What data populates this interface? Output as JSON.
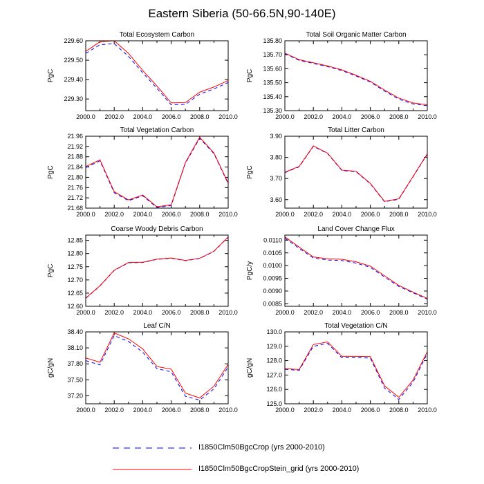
{
  "title": "Eastern Siberia (50-66.5N,90-140E)",
  "colors": {
    "blue": "#0000ff",
    "red": "#ff0000"
  },
  "legend": [
    {
      "label": "I1850Clm50BgcCrop (yrs 2000-2010)",
      "color": "#0000ff",
      "style": "dashed"
    },
    {
      "label": "I1850Clm50BgcCropStein_grid (yrs 2000-2010)",
      "color": "#ff0000",
      "style": "solid"
    }
  ],
  "chart_data": [
    {
      "type": "line",
      "title": "Total Ecosystem Carbon",
      "ylabel": "PgC",
      "x": [
        2000,
        2001,
        2002,
        2003,
        2004,
        2005,
        2006,
        2007,
        2008,
        2009,
        2010
      ],
      "xlim": [
        2000,
        2010
      ],
      "ylim": [
        229.24,
        229.6
      ],
      "xticks": [
        "2000.0",
        "2002.0",
        "2004.0",
        "2006.0",
        "2008.0",
        "2010.0"
      ],
      "yticks": [
        229.3,
        229.4,
        229.5,
        229.6
      ],
      "yticklabels": [
        "229.30",
        "229.40",
        "229.50",
        "229.60"
      ],
      "series": [
        {
          "name": "I1850Clm50BgcCrop (yrs 2000-2010)",
          "values": [
            229.535,
            229.58,
            229.585,
            229.52,
            229.435,
            229.355,
            229.27,
            229.272,
            229.325,
            229.352,
            229.385
          ]
        },
        {
          "name": "I1850Clm50BgcCropStein_grid (yrs 2000-2010)",
          "values": [
            229.545,
            229.595,
            229.6,
            229.535,
            229.447,
            229.367,
            229.28,
            229.282,
            229.335,
            229.362,
            229.395
          ]
        }
      ]
    },
    {
      "type": "line",
      "title": "Total Soil Organic Matter Carbon",
      "ylabel": "PgC",
      "x": [
        2000,
        2001,
        2002,
        2003,
        2004,
        2005,
        2006,
        2007,
        2008,
        2009,
        2010
      ],
      "xlim": [
        2000,
        2010
      ],
      "ylim": [
        135.3,
        135.8
      ],
      "xticks": [
        "2000.0",
        "2002.0",
        "2004.0",
        "2006.0",
        "2008.0",
        "2010.0"
      ],
      "yticks": [
        135.3,
        135.4,
        135.5,
        135.6,
        135.7,
        135.8
      ],
      "yticklabels": [
        "135.30",
        "135.40",
        "135.50",
        "135.60",
        "135.70",
        "135.80"
      ],
      "series": [
        {
          "name": "I1850Clm50BgcCrop (yrs 2000-2010)",
          "values": [
            135.708,
            135.66,
            135.638,
            135.615,
            135.587,
            135.548,
            135.505,
            135.44,
            135.382,
            135.348,
            135.335
          ]
        },
        {
          "name": "I1850Clm50BgcCropStein_grid (yrs 2000-2010)",
          "values": [
            135.712,
            135.665,
            135.643,
            135.62,
            135.592,
            135.553,
            135.51,
            135.447,
            135.39,
            135.355,
            135.342
          ]
        }
      ]
    },
    {
      "type": "line",
      "title": "Total Vegetation Carbon",
      "ylabel": "PgC",
      "x": [
        2000,
        2001,
        2002,
        2003,
        2004,
        2005,
        2006,
        2007,
        2008,
        2009,
        2010
      ],
      "xlim": [
        2000,
        2010
      ],
      "ylim": [
        21.68,
        21.96
      ],
      "xticks": [
        "2000.0",
        "2002.0",
        "2004.0",
        "2006.0",
        "2008.0",
        "2010.0"
      ],
      "yticks": [
        21.68,
        21.72,
        21.76,
        21.8,
        21.84,
        21.88,
        21.92,
        21.96
      ],
      "yticklabels": [
        "21.68",
        "21.72",
        "21.76",
        "21.80",
        "21.84",
        "21.88",
        "21.92",
        "21.96"
      ],
      "series": [
        {
          "name": "I1850Clm50BgcCrop (yrs 2000-2010)",
          "values": [
            21.838,
            21.864,
            21.74,
            21.709,
            21.728,
            21.682,
            21.69,
            21.855,
            21.952,
            21.892,
            21.775
          ]
        },
        {
          "name": "I1850Clm50BgcCropStein_grid (yrs 2000-2010)",
          "values": [
            21.842,
            21.868,
            21.744,
            21.712,
            21.731,
            21.685,
            21.693,
            21.858,
            21.956,
            21.895,
            21.778
          ]
        }
      ]
    },
    {
      "type": "line",
      "title": "Total Litter Carbon",
      "ylabel": "PgC",
      "x": [
        2000,
        2001,
        2002,
        2003,
        2004,
        2005,
        2006,
        2007,
        2008,
        2009,
        2010
      ],
      "xlim": [
        2000,
        2010
      ],
      "ylim": [
        3.56,
        3.9
      ],
      "xticks": [
        "2000.0",
        "2002.0",
        "2004.0",
        "2006.0",
        "2008.0",
        "2010.0"
      ],
      "yticks": [
        3.6,
        3.7,
        3.8,
        3.9
      ],
      "yticklabels": [
        "3.60",
        "3.70",
        "3.80",
        "3.90"
      ],
      "series": [
        {
          "name": "I1850Clm50BgcCrop (yrs 2000-2010)",
          "values": [
            3.728,
            3.755,
            3.852,
            3.818,
            3.738,
            3.732,
            3.675,
            3.59,
            3.602,
            3.708,
            3.815
          ]
        },
        {
          "name": "I1850Clm50BgcCropStein_grid (yrs 2000-2010)",
          "values": [
            3.73,
            3.757,
            3.854,
            3.82,
            3.74,
            3.734,
            3.677,
            3.592,
            3.604,
            3.71,
            3.817
          ]
        }
      ]
    },
    {
      "type": "line",
      "title": "Coarse Woody Debris Carbon",
      "ylabel": "PgC",
      "x": [
        2000,
        2001,
        2002,
        2003,
        2004,
        2005,
        2006,
        2007,
        2008,
        2009,
        2010
      ],
      "xlim": [
        2000,
        2010
      ],
      "ylim": [
        12.6,
        12.87
      ],
      "xticks": [
        "2000.0",
        "2002.0",
        "2004.0",
        "2006.0",
        "2008.0",
        "2010.0"
      ],
      "yticks": [
        12.6,
        12.65,
        12.7,
        12.75,
        12.8,
        12.85
      ],
      "yticklabels": [
        "12.60",
        "12.65",
        "12.70",
        "12.75",
        "12.80",
        "12.85"
      ],
      "series": [
        {
          "name": "I1850Clm50BgcCrop (yrs 2000-2010)",
          "values": [
            12.63,
            12.677,
            12.736,
            12.765,
            12.766,
            12.778,
            12.782,
            12.773,
            12.781,
            12.808,
            12.862
          ]
        },
        {
          "name": "I1850Clm50BgcCropStein_grid (yrs 2000-2010)",
          "values": [
            12.631,
            12.678,
            12.737,
            12.766,
            12.767,
            12.779,
            12.783,
            12.774,
            12.782,
            12.809,
            12.863
          ]
        }
      ]
    },
    {
      "type": "line",
      "title": "Land Cover Change Flux",
      "ylabel": "PgC/y",
      "x": [
        2000,
        2001,
        2002,
        2003,
        2004,
        2005,
        2006,
        2007,
        2008,
        2009,
        2010
      ],
      "xlim": [
        2000,
        2010
      ],
      "ylim": [
        0.0084,
        0.0112
      ],
      "xticks": [
        "2000.0",
        "2002.0",
        "2004.0",
        "2006.0",
        "2008.0",
        "2010.0"
      ],
      "yticks": [
        0.0085,
        0.009,
        0.0095,
        0.01,
        0.0105,
        0.011
      ],
      "yticklabels": [
        "0.0085",
        "0.0090",
        "0.0095",
        "0.0100",
        "0.0105",
        "0.0110"
      ],
      "series": [
        {
          "name": "I1850Clm50BgcCrop (yrs 2000-2010)",
          "values": [
            0.01108,
            0.01068,
            0.0103,
            0.01022,
            0.0102,
            0.0101,
            0.00993,
            0.00955,
            0.00918,
            0.00893,
            0.00868
          ]
        },
        {
          "name": "I1850Clm50BgcCropStein_grid (yrs 2000-2010)",
          "values": [
            0.01113,
            0.01073,
            0.01034,
            0.01027,
            0.01025,
            0.01015,
            0.00998,
            0.0096,
            0.00922,
            0.00896,
            0.00871
          ]
        }
      ]
    },
    {
      "type": "line",
      "title": "Leaf C/N",
      "ylabel": "gC/gN",
      "x": [
        2000,
        2001,
        2002,
        2003,
        2004,
        2005,
        2006,
        2007,
        2008,
        2009,
        2010
      ],
      "xlim": [
        2000,
        2010
      ],
      "ylim": [
        37.05,
        38.4
      ],
      "xticks": [
        "2000.0",
        "2002.0",
        "2004.0",
        "2006.0",
        "2008.0",
        "2010.0"
      ],
      "yticks": [
        37.2,
        37.5,
        37.8,
        38.1,
        38.4
      ],
      "yticklabels": [
        "37.20",
        "37.50",
        "37.80",
        "38.10",
        "38.40"
      ],
      "series": [
        {
          "name": "I1850Clm50BgcCrop (yrs 2000-2010)",
          "values": [
            37.86,
            37.78,
            38.33,
            38.22,
            38.02,
            37.71,
            37.65,
            37.19,
            37.12,
            37.33,
            37.74
          ]
        },
        {
          "name": "I1850Clm50BgcCropStein_grid (yrs 2000-2010)",
          "values": [
            37.91,
            37.83,
            38.38,
            38.27,
            38.08,
            37.75,
            37.7,
            37.25,
            37.16,
            37.38,
            37.79
          ]
        }
      ]
    },
    {
      "type": "line",
      "title": "Total Vegetation C/N",
      "ylabel": "gC/gN",
      "x": [
        2000,
        2001,
        2002,
        2003,
        2004,
        2005,
        2006,
        2007,
        2008,
        2009,
        2010
      ],
      "xlim": [
        2000,
        2010
      ],
      "ylim": [
        125.0,
        130.0
      ],
      "xticks": [
        "2000.0",
        "2002.0",
        "2004.0",
        "2006.0",
        "2008.0",
        "2010.0"
      ],
      "yticks": [
        125.0,
        126.0,
        127.0,
        128.0,
        129.0,
        130.0
      ],
      "yticklabels": [
        "125.0",
        "126.0",
        "127.0",
        "128.0",
        "129.0",
        "130.0"
      ],
      "series": [
        {
          "name": "I1850Clm50BgcCrop (yrs 2000-2010)",
          "values": [
            127.4,
            127.32,
            129.0,
            129.2,
            128.2,
            128.2,
            128.18,
            126.1,
            125.3,
            126.5,
            128.5
          ]
        },
        {
          "name": "I1850Clm50BgcCropStein_grid (yrs 2000-2010)",
          "values": [
            127.45,
            127.38,
            129.12,
            129.3,
            128.3,
            128.3,
            128.28,
            126.25,
            125.45,
            126.65,
            128.62
          ]
        }
      ]
    }
  ]
}
